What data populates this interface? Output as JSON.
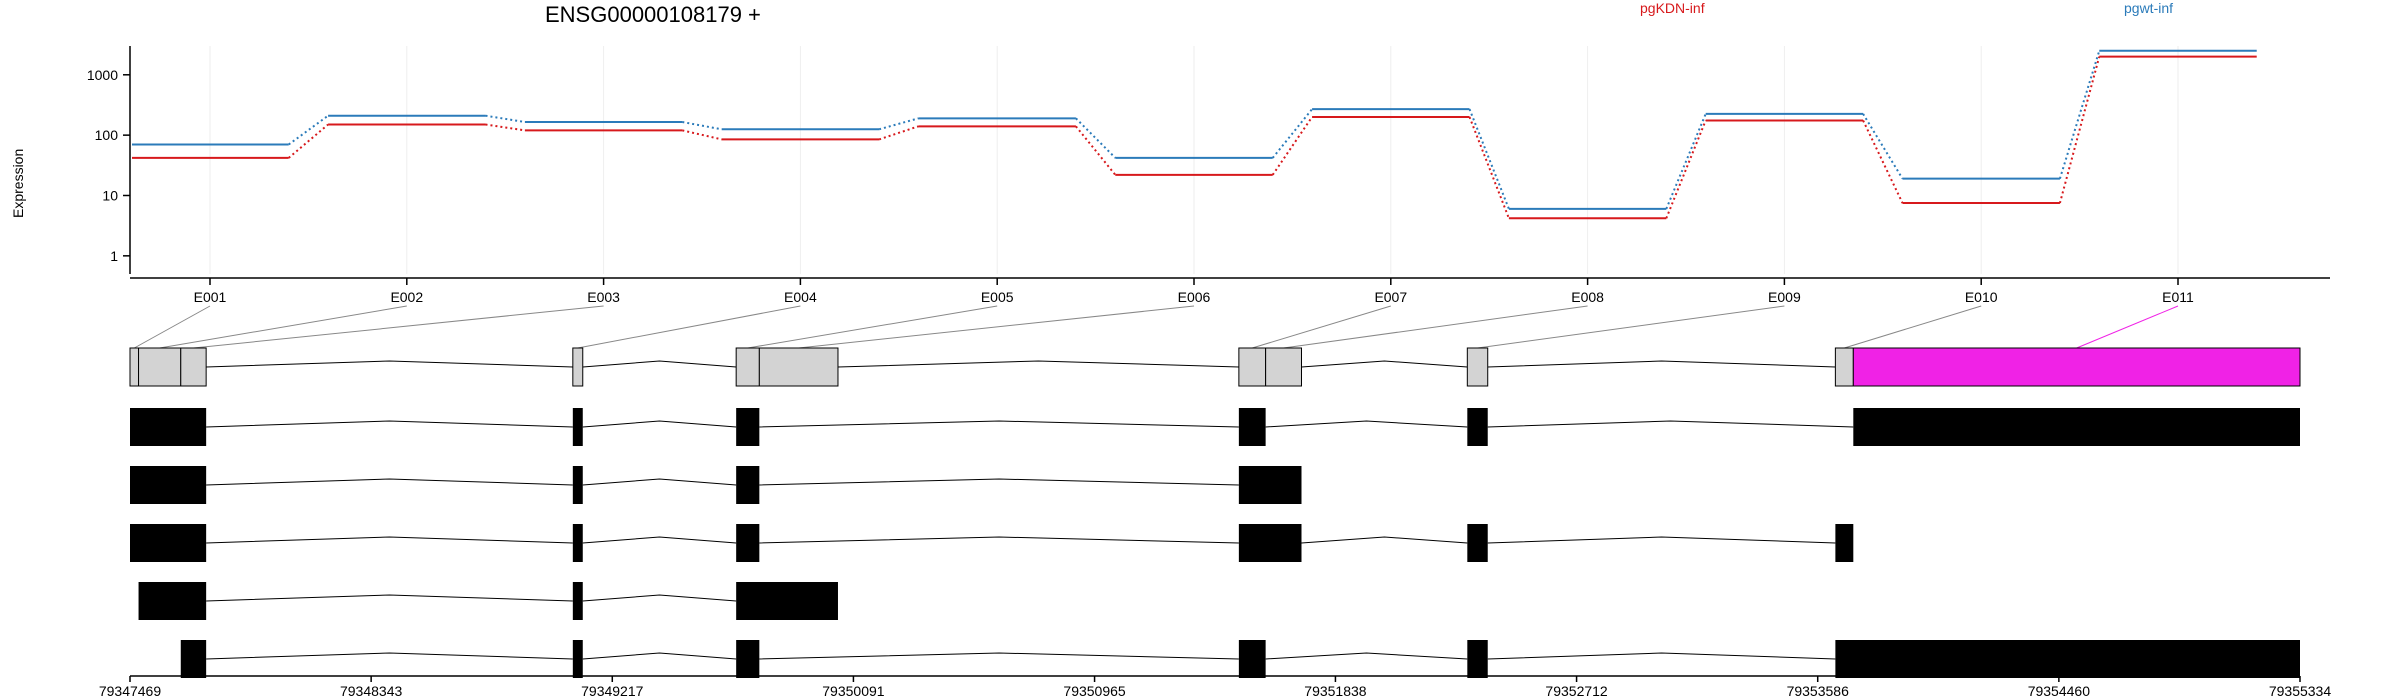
{
  "title": "ENSG00000108179 +",
  "legend": {
    "kdn": "pgKDN-inf",
    "wt": "pgwt-inf"
  },
  "colors": {
    "kdn": "#d7191c",
    "wt": "#2b7bba",
    "exon_default": "#d3d3d3",
    "exon_highlight": "#f022e6",
    "transcript": "#000000"
  },
  "chart_data": {
    "type": "line",
    "ylabel": "Expression",
    "yscale": "log",
    "ylim": [
      0.5,
      3000
    ],
    "yticks": [
      1,
      10,
      100,
      1000
    ],
    "categories": [
      "E001",
      "E002",
      "E003",
      "E004",
      "E005",
      "E006",
      "E007",
      "E008",
      "E009",
      "E010",
      "E011"
    ],
    "series": [
      {
        "name": "pgKDN-inf",
        "values": [
          42,
          150,
          120,
          85,
          140,
          22,
          200,
          4.2,
          175,
          7.5,
          2000
        ]
      },
      {
        "name": "pgwt-inf",
        "values": [
          70,
          210,
          165,
          125,
          190,
          42,
          270,
          6,
          225,
          19,
          2500
        ]
      }
    ]
  },
  "gene_model": {
    "coord_start": 79347469,
    "coord_end": 79355334,
    "axis_ticks": [
      79347469,
      79348343,
      79349217,
      79350091,
      79350965,
      79351838,
      79352712,
      79353586,
      79354460,
      79355334
    ],
    "exons": [
      {
        "id": "E001",
        "start": 79347469,
        "end": 79347500
      },
      {
        "id": "E002",
        "start": 79347500,
        "end": 79347653
      },
      {
        "id": "E003",
        "start": 79347653,
        "end": 79347745
      },
      {
        "id": "E004",
        "start": 79349074,
        "end": 79349110
      },
      {
        "id": "E005",
        "start": 79349666,
        "end": 79349750
      },
      {
        "id": "E006",
        "start": 79349750,
        "end": 79350035
      },
      {
        "id": "E007",
        "start": 79351488,
        "end": 79351585
      },
      {
        "id": "E008",
        "start": 79351585,
        "end": 79351715
      },
      {
        "id": "E009",
        "start": 79352316,
        "end": 79352390
      },
      {
        "id": "E010",
        "start": 79353650,
        "end": 79353715
      },
      {
        "id": "E011",
        "start": 79353715,
        "end": 79355334,
        "highlight": true
      }
    ],
    "transcripts": [
      {
        "exons": [
          [
            79347469,
            79347745
          ],
          [
            79349074,
            79349110
          ],
          [
            79349666,
            79349750
          ],
          [
            79351488,
            79351585
          ],
          [
            79352316,
            79352390
          ],
          [
            79353715,
            79355334
          ]
        ]
      },
      {
        "exons": [
          [
            79347469,
            79347745
          ],
          [
            79349074,
            79349110
          ],
          [
            79349666,
            79349750
          ],
          [
            79351488,
            79351715
          ]
        ]
      },
      {
        "exons": [
          [
            79347469,
            79347745
          ],
          [
            79349074,
            79349110
          ],
          [
            79349666,
            79349750
          ],
          [
            79351488,
            79351715
          ],
          [
            79352316,
            79352390
          ],
          [
            79353650,
            79353715
          ]
        ]
      },
      {
        "exons": [
          [
            79347500,
            79347745
          ],
          [
            79349074,
            79349110
          ],
          [
            79349666,
            79350035
          ]
        ]
      },
      {
        "exons": [
          [
            79347653,
            79347745
          ],
          [
            79349074,
            79349110
          ],
          [
            79349666,
            79349750
          ],
          [
            79351488,
            79351585
          ],
          [
            79352316,
            79352390
          ],
          [
            79353650,
            79355334
          ]
        ]
      }
    ]
  }
}
